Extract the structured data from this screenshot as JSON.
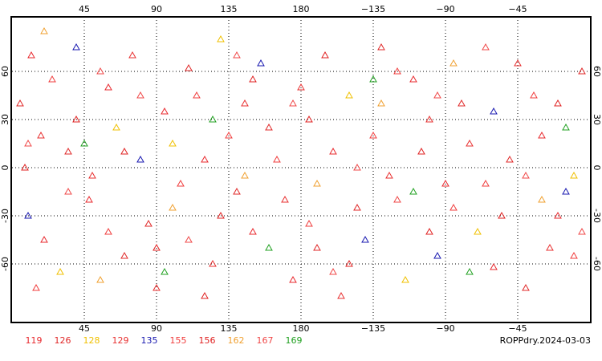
{
  "chart_data": {
    "type": "scatter",
    "xlim": [
      0,
      360
    ],
    "ylim": [
      -96,
      94
    ],
    "xticks": [
      45,
      90,
      135,
      180,
      {
        "value": 225,
        "label": "−135"
      },
      {
        "value": 270,
        "label": "−90"
      },
      {
        "value": 315,
        "label": "−45"
      }
    ],
    "yticks": [
      60,
      30,
      0,
      -30,
      -60
    ],
    "grid": true,
    "series": [
      {
        "name": "119",
        "color": "#e8282d",
        "points": [
          [
            12,
            70
          ],
          [
            48,
            -20
          ],
          [
            95,
            35
          ],
          [
            150,
            -40
          ],
          [
            200,
            10
          ],
          [
            250,
            55
          ],
          [
            300,
            -62
          ],
          [
            330,
            20
          ],
          [
            20,
            -45
          ],
          [
            120,
            5
          ],
          [
            175,
            -70
          ],
          [
            270,
            -10
          ],
          [
            60,
            50
          ],
          [
            340,
            -30
          ]
        ]
      },
      {
        "name": "126",
        "color": "#e02828",
        "points": [
          [
            5,
            40
          ],
          [
            70,
            -55
          ],
          [
            110,
            62
          ],
          [
            160,
            25
          ],
          [
            215,
            -25
          ],
          [
            280,
            40
          ],
          [
            320,
            -75
          ],
          [
            35,
            10
          ],
          [
            140,
            -15
          ],
          [
            230,
            75
          ],
          [
            310,
            5
          ],
          [
            85,
            -35
          ],
          [
            190,
            -50
          ],
          [
            355,
            60
          ]
        ]
      },
      {
        "name": "128",
        "color": "#f0c000",
        "points": [
          [
            30,
            -65
          ],
          [
            100,
            15
          ],
          [
            210,
            45
          ],
          [
            290,
            -40
          ],
          [
            350,
            -5
          ],
          [
            130,
            80
          ],
          [
            65,
            25
          ],
          [
            245,
            -70
          ]
        ]
      },
      {
        "name": "129",
        "color": "#e83030",
        "points": [
          [
            18,
            20
          ],
          [
            75,
            70
          ],
          [
            125,
            -60
          ],
          [
            180,
            50
          ],
          [
            235,
            -5
          ],
          [
            285,
            15
          ],
          [
            335,
            -50
          ],
          [
            50,
            -5
          ],
          [
            145,
            40
          ],
          [
            205,
            -80
          ],
          [
            260,
            30
          ],
          [
            315,
            65
          ],
          [
            90,
            -75
          ],
          [
            170,
            -20
          ]
        ]
      },
      {
        "name": "135",
        "color": "#1818b0",
        "points": [
          [
            10,
            -30
          ],
          [
            80,
            5
          ],
          [
            155,
            65
          ],
          [
            220,
            -45
          ],
          [
            300,
            35
          ],
          [
            345,
            -15
          ],
          [
            40,
            75
          ],
          [
            265,
            -55
          ]
        ]
      },
      {
        "name": "155",
        "color": "#f03c3c",
        "points": [
          [
            25,
            55
          ],
          [
            60,
            -40
          ],
          [
            105,
            -10
          ],
          [
            135,
            20
          ],
          [
            185,
            -35
          ],
          [
            240,
            60
          ],
          [
            275,
            -25
          ],
          [
            325,
            45
          ],
          [
            15,
            -75
          ],
          [
            115,
            45
          ],
          [
            165,
            5
          ],
          [
            225,
            20
          ],
          [
            295,
            -10
          ],
          [
            350,
            -55
          ]
        ]
      },
      {
        "name": "156",
        "color": "#e02020",
        "points": [
          [
            40,
            30
          ],
          [
            90,
            -50
          ],
          [
            130,
            -30
          ],
          [
            195,
            70
          ],
          [
            255,
            10
          ],
          [
            305,
            -30
          ],
          [
            8,
            0
          ],
          [
            150,
            55
          ],
          [
            210,
            -60
          ],
          [
            260,
            -40
          ],
          [
            340,
            40
          ],
          [
            70,
            10
          ],
          [
            185,
            30
          ],
          [
            120,
            -80
          ]
        ]
      },
      {
        "name": "162",
        "color": "#f0a030",
        "points": [
          [
            55,
            -70
          ],
          [
            145,
            -5
          ],
          [
            230,
            40
          ],
          [
            330,
            -20
          ],
          [
            20,
            85
          ],
          [
            100,
            -25
          ],
          [
            275,
            65
          ],
          [
            190,
            -10
          ]
        ]
      },
      {
        "name": "167",
        "color": "#f04848",
        "points": [
          [
            35,
            -15
          ],
          [
            80,
            45
          ],
          [
            140,
            70
          ],
          [
            200,
            -65
          ],
          [
            265,
            45
          ],
          [
            320,
            -5
          ],
          [
            10,
            15
          ],
          [
            110,
            -45
          ],
          [
            175,
            40
          ],
          [
            240,
            -20
          ],
          [
            295,
            75
          ],
          [
            355,
            -40
          ],
          [
            55,
            60
          ],
          [
            215,
            0
          ]
        ]
      },
      {
        "name": "169",
        "color": "#20a020",
        "points": [
          [
            45,
            15
          ],
          [
            95,
            -65
          ],
          [
            160,
            -50
          ],
          [
            225,
            55
          ],
          [
            285,
            -65
          ],
          [
            345,
            25
          ],
          [
            125,
            30
          ],
          [
            250,
            -15
          ]
        ]
      }
    ],
    "label": "ROPPdry.2024-03-03"
  }
}
